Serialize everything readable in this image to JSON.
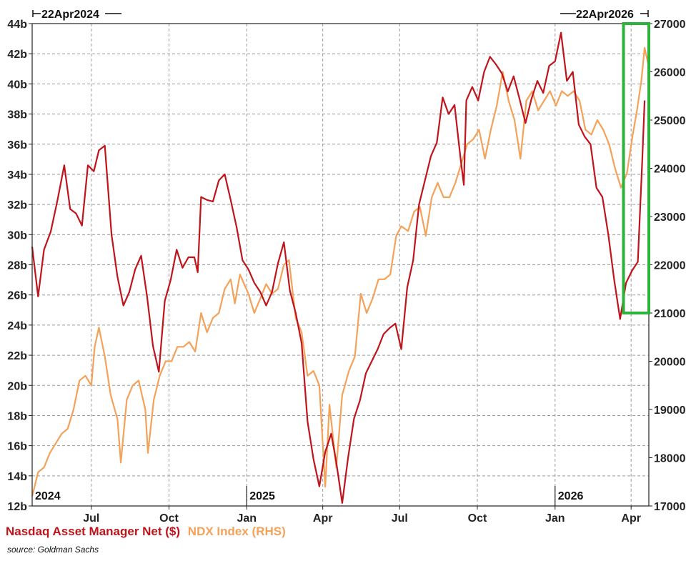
{
  "chart_data": {
    "type": "line",
    "start_label": "22Apr2024",
    "end_label": "22Apr2026",
    "x_range": [
      "2024-04-22",
      "2026-04-22"
    ],
    "year_labels": [
      {
        "date": "2024-04-22",
        "label": "2024"
      },
      {
        "date": "2025-01-01",
        "label": "2025"
      },
      {
        "date": "2026-01-01",
        "label": "2026"
      }
    ],
    "month_ticks": [
      {
        "date": "2024-07-01",
        "label": "Jul"
      },
      {
        "date": "2024-10-01",
        "label": "Oct"
      },
      {
        "date": "2025-01-01",
        "label": "Jan"
      },
      {
        "date": "2025-04-01",
        "label": "Apr"
      },
      {
        "date": "2025-07-01",
        "label": "Jul"
      },
      {
        "date": "2025-10-01",
        "label": "Oct"
      },
      {
        "date": "2026-01-01",
        "label": "Jan"
      },
      {
        "date": "2026-04-01",
        "label": "Apr"
      }
    ],
    "left_axis": {
      "min": 12,
      "max": 44,
      "ticks": [
        "12b",
        "14b",
        "16b",
        "18b",
        "20b",
        "22b",
        "24b",
        "26b",
        "28b",
        "30b",
        "32b",
        "34b",
        "36b",
        "38b",
        "40b",
        "42b",
        "44b"
      ]
    },
    "right_axis": {
      "min": 17000,
      "max": 27000,
      "ticks": [
        "17000",
        "18000",
        "19000",
        "20000",
        "21000",
        "22000",
        "23000",
        "24000",
        "25000",
        "26000",
        "27000"
      ]
    },
    "grid": true,
    "highlight": {
      "from": "2026-03-23",
      "to": "2026-04-22",
      "y_from": 21000,
      "y_to": 27000,
      "axis": "right",
      "color": "#2db33a"
    },
    "series": [
      {
        "name": "Nasdaq Asset Manager Net ($)",
        "axis": "left",
        "color": "#c0141c",
        "points": [
          [
            "2024-04-22",
            29.2
          ],
          [
            "2024-04-29",
            25.9
          ],
          [
            "2024-05-06",
            29.0
          ],
          [
            "2024-05-14",
            30.2
          ],
          [
            "2024-05-22",
            32.3
          ],
          [
            "2024-05-30",
            34.6
          ],
          [
            "2024-06-06",
            31.7
          ],
          [
            "2024-06-13",
            31.4
          ],
          [
            "2024-06-20",
            30.6
          ],
          [
            "2024-06-27",
            34.6
          ],
          [
            "2024-07-04",
            34.2
          ],
          [
            "2024-07-10",
            35.6
          ],
          [
            "2024-07-17",
            35.9
          ],
          [
            "2024-07-25",
            30.0
          ],
          [
            "2024-08-01",
            27.2
          ],
          [
            "2024-08-08",
            25.3
          ],
          [
            "2024-08-15",
            26.2
          ],
          [
            "2024-08-22",
            27.7
          ],
          [
            "2024-08-29",
            28.6
          ],
          [
            "2024-09-05",
            25.9
          ],
          [
            "2024-09-12",
            22.6
          ],
          [
            "2024-09-19",
            20.9
          ],
          [
            "2024-09-26",
            25.6
          ],
          [
            "2024-10-03",
            27.0
          ],
          [
            "2024-10-10",
            29.0
          ],
          [
            "2024-10-17",
            27.8
          ],
          [
            "2024-10-24",
            28.5
          ],
          [
            "2024-10-31",
            28.5
          ],
          [
            "2024-11-04",
            27.5
          ],
          [
            "2024-11-08",
            32.5
          ],
          [
            "2024-11-15",
            32.3
          ],
          [
            "2024-11-22",
            32.2
          ],
          [
            "2024-11-29",
            33.6
          ],
          [
            "2024-12-06",
            34.0
          ],
          [
            "2024-12-13",
            32.3
          ],
          [
            "2024-12-20",
            30.5
          ],
          [
            "2024-12-27",
            28.3
          ],
          [
            "2025-01-03",
            27.7
          ],
          [
            "2025-01-10",
            26.8
          ],
          [
            "2025-01-17",
            26.2
          ],
          [
            "2025-01-24",
            25.3
          ],
          [
            "2025-01-31",
            26.2
          ],
          [
            "2025-02-07",
            28.1
          ],
          [
            "2025-02-14",
            29.5
          ],
          [
            "2025-02-21",
            26.3
          ],
          [
            "2025-02-28",
            24.8
          ],
          [
            "2025-03-07",
            22.8
          ],
          [
            "2025-03-14",
            17.6
          ],
          [
            "2025-03-21",
            15.1
          ],
          [
            "2025-03-28",
            13.3
          ],
          [
            "2025-04-04",
            15.6
          ],
          [
            "2025-04-11",
            16.8
          ],
          [
            "2025-04-17",
            14.9
          ],
          [
            "2025-04-24",
            12.2
          ],
          [
            "2025-05-01",
            15.2
          ],
          [
            "2025-05-08",
            17.8
          ],
          [
            "2025-05-15",
            19.0
          ],
          [
            "2025-05-22",
            20.8
          ],
          [
            "2025-05-29",
            21.6
          ],
          [
            "2025-06-05",
            22.4
          ],
          [
            "2025-06-12",
            23.4
          ],
          [
            "2025-06-19",
            23.8
          ],
          [
            "2025-06-26",
            24.1
          ],
          [
            "2025-07-03",
            22.4
          ],
          [
            "2025-07-10",
            26.5
          ],
          [
            "2025-07-17",
            28.3
          ],
          [
            "2025-07-24",
            32.0
          ],
          [
            "2025-07-31",
            33.6
          ],
          [
            "2025-08-07",
            35.2
          ],
          [
            "2025-08-14",
            36.1
          ],
          [
            "2025-08-21",
            39.1
          ],
          [
            "2025-08-28",
            38.0
          ],
          [
            "2025-09-04",
            38.6
          ],
          [
            "2025-09-11",
            35.1
          ],
          [
            "2025-09-15",
            33.3
          ],
          [
            "2025-09-18",
            38.9
          ],
          [
            "2025-09-25",
            39.8
          ],
          [
            "2025-10-02",
            38.9
          ],
          [
            "2025-10-09",
            40.8
          ],
          [
            "2025-10-16",
            41.8
          ],
          [
            "2025-10-23",
            41.3
          ],
          [
            "2025-10-30",
            40.7
          ],
          [
            "2025-11-06",
            39.5
          ],
          [
            "2025-11-13",
            40.5
          ],
          [
            "2025-11-20",
            39.0
          ],
          [
            "2025-11-27",
            37.4
          ],
          [
            "2025-12-04",
            39.0
          ],
          [
            "2025-12-11",
            40.2
          ],
          [
            "2025-12-18",
            39.4
          ],
          [
            "2025-12-25",
            41.2
          ],
          [
            "2026-01-01",
            41.5
          ],
          [
            "2026-01-08",
            43.4
          ],
          [
            "2026-01-15",
            40.2
          ],
          [
            "2026-01-22",
            40.8
          ],
          [
            "2026-01-29",
            37.3
          ],
          [
            "2026-02-05",
            36.5
          ],
          [
            "2026-02-12",
            36.0
          ],
          [
            "2026-02-19",
            33.1
          ],
          [
            "2026-02-26",
            32.5
          ],
          [
            "2026-03-05",
            30.0
          ],
          [
            "2026-03-12",
            27.0
          ],
          [
            "2026-03-19",
            24.4
          ],
          [
            "2026-03-26",
            26.8
          ],
          [
            "2026-04-02",
            27.6
          ],
          [
            "2026-04-09",
            28.2
          ],
          [
            "2026-04-14",
            34.6
          ],
          [
            "2026-04-17",
            38.9
          ]
        ]
      },
      {
        "name": "NDX Index (RHS)",
        "axis": "right",
        "color": "#f4a25a",
        "points": [
          [
            "2024-04-22",
            17200
          ],
          [
            "2024-04-29",
            17700
          ],
          [
            "2024-05-06",
            17800
          ],
          [
            "2024-05-13",
            18100
          ],
          [
            "2024-05-20",
            18300
          ],
          [
            "2024-05-27",
            18500
          ],
          [
            "2024-06-03",
            18600
          ],
          [
            "2024-06-10",
            19000
          ],
          [
            "2024-06-17",
            19600
          ],
          [
            "2024-06-24",
            19700
          ],
          [
            "2024-07-01",
            19500
          ],
          [
            "2024-07-05",
            20300
          ],
          [
            "2024-07-10",
            20700
          ],
          [
            "2024-07-17",
            20100
          ],
          [
            "2024-07-24",
            19300
          ],
          [
            "2024-08-01",
            18800
          ],
          [
            "2024-08-05",
            17900
          ],
          [
            "2024-08-12",
            19200
          ],
          [
            "2024-08-19",
            19500
          ],
          [
            "2024-08-26",
            19600
          ],
          [
            "2024-09-03",
            19000
          ],
          [
            "2024-09-06",
            18100
          ],
          [
            "2024-09-13",
            19200
          ],
          [
            "2024-09-20",
            19700
          ],
          [
            "2024-09-27",
            20000
          ],
          [
            "2024-10-04",
            20000
          ],
          [
            "2024-10-11",
            20300
          ],
          [
            "2024-10-18",
            20300
          ],
          [
            "2024-10-25",
            20400
          ],
          [
            "2024-11-01",
            20200
          ],
          [
            "2024-11-08",
            21000
          ],
          [
            "2024-11-15",
            20600
          ],
          [
            "2024-11-22",
            20900
          ],
          [
            "2024-11-29",
            21000
          ],
          [
            "2024-12-06",
            21500
          ],
          [
            "2024-12-13",
            21700
          ],
          [
            "2024-12-18",
            21200
          ],
          [
            "2024-12-24",
            21800
          ],
          [
            "2025-01-03",
            21400
          ],
          [
            "2025-01-10",
            21000
          ],
          [
            "2025-01-17",
            21300
          ],
          [
            "2025-01-24",
            21600
          ],
          [
            "2025-01-31",
            21400
          ],
          [
            "2025-02-07",
            21500
          ],
          [
            "2025-02-14",
            22000
          ],
          [
            "2025-02-20",
            22100
          ],
          [
            "2025-02-28",
            20900
          ],
          [
            "2025-03-07",
            20600
          ],
          [
            "2025-03-14",
            19700
          ],
          [
            "2025-03-21",
            19800
          ],
          [
            "2025-03-28",
            19500
          ],
          [
            "2025-04-04",
            17400
          ],
          [
            "2025-04-09",
            19100
          ],
          [
            "2025-04-17",
            17800
          ],
          [
            "2025-04-24",
            19300
          ],
          [
            "2025-05-02",
            19800
          ],
          [
            "2025-05-09",
            20100
          ],
          [
            "2025-05-16",
            21400
          ],
          [
            "2025-05-23",
            21000
          ],
          [
            "2025-05-30",
            21300
          ],
          [
            "2025-06-06",
            21700
          ],
          [
            "2025-06-13",
            21700
          ],
          [
            "2025-06-20",
            21800
          ],
          [
            "2025-06-27",
            22600
          ],
          [
            "2025-07-03",
            22800
          ],
          [
            "2025-07-11",
            22700
          ],
          [
            "2025-07-18",
            23100
          ],
          [
            "2025-07-25",
            23200
          ],
          [
            "2025-08-01",
            22600
          ],
          [
            "2025-08-08",
            23400
          ],
          [
            "2025-08-15",
            23700
          ],
          [
            "2025-08-22",
            23400
          ],
          [
            "2025-08-29",
            23400
          ],
          [
            "2025-09-05",
            23700
          ],
          [
            "2025-09-12",
            24100
          ],
          [
            "2025-09-19",
            24500
          ],
          [
            "2025-09-26",
            24600
          ],
          [
            "2025-10-03",
            24800
          ],
          [
            "2025-10-10",
            24200
          ],
          [
            "2025-10-17",
            24800
          ],
          [
            "2025-10-24",
            25300
          ],
          [
            "2025-10-31",
            26000
          ],
          [
            "2025-11-07",
            25400
          ],
          [
            "2025-11-14",
            25000
          ],
          [
            "2025-11-21",
            24200
          ],
          [
            "2025-11-28",
            25400
          ],
          [
            "2025-12-05",
            25600
          ],
          [
            "2025-12-12",
            25200
          ],
          [
            "2025-12-19",
            25400
          ],
          [
            "2025-12-26",
            25600
          ],
          [
            "2026-01-02",
            25300
          ],
          [
            "2026-01-09",
            25600
          ],
          [
            "2026-01-16",
            25500
          ],
          [
            "2026-01-23",
            25600
          ],
          [
            "2026-01-30",
            25400
          ],
          [
            "2026-02-06",
            24800
          ],
          [
            "2026-02-13",
            24700
          ],
          [
            "2026-02-20",
            25000
          ],
          [
            "2026-02-27",
            24800
          ],
          [
            "2026-03-06",
            24500
          ],
          [
            "2026-03-13",
            24000
          ],
          [
            "2026-03-20",
            23600
          ],
          [
            "2026-03-27",
            23900
          ],
          [
            "2026-04-03",
            24700
          ],
          [
            "2026-04-08",
            25200
          ],
          [
            "2026-04-13",
            25800
          ],
          [
            "2026-04-17",
            26500
          ],
          [
            "2026-04-22",
            26100
          ]
        ]
      }
    ]
  },
  "legend": {
    "series_1": "Nasdaq Asset Manager Net ($)",
    "series_2": "NDX Index (RHS)",
    "series_1_color": "#c0141c",
    "series_2_color": "#f4a25a"
  },
  "source": "source: Goldman Sachs"
}
